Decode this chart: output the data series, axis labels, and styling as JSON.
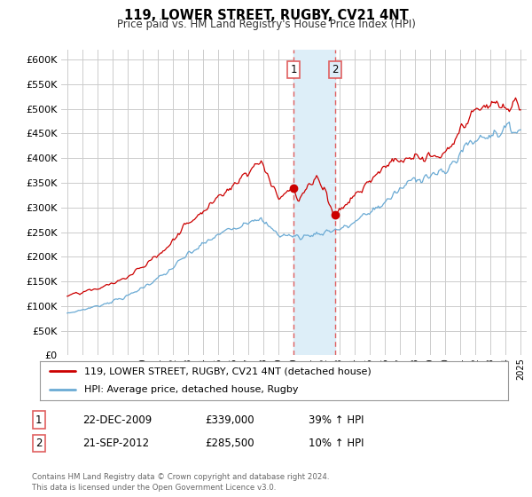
{
  "title": "119, LOWER STREET, RUGBY, CV21 4NT",
  "subtitle": "Price paid vs. HM Land Registry's House Price Index (HPI)",
  "legend_line1": "119, LOWER STREET, RUGBY, CV21 4NT (detached house)",
  "legend_line2": "HPI: Average price, detached house, Rugby",
  "transaction1_date": "22-DEC-2009",
  "transaction1_price": "£339,000",
  "transaction1_hpi": "39% ↑ HPI",
  "transaction2_date": "21-SEP-2012",
  "transaction2_price": "£285,500",
  "transaction2_hpi": "10% ↑ HPI",
  "transaction1_x": 2009.97,
  "transaction1_y": 339000,
  "transaction2_x": 2012.72,
  "transaction2_y": 285500,
  "vline1_x": 2009.97,
  "vline2_x": 2012.72,
  "hpi_color": "#6aaad4",
  "price_color": "#cc0000",
  "vline_color": "#e06060",
  "vspan_color": "#ddeef8",
  "background_color": "#ffffff",
  "grid_color": "#cccccc",
  "footer": "Contains HM Land Registry data © Crown copyright and database right 2024.\nThis data is licensed under the Open Government Licence v3.0.",
  "ylim": [
    0,
    620000
  ],
  "xlim_start": 1994.6,
  "xlim_end": 2025.4,
  "yticks": [
    0,
    50000,
    100000,
    150000,
    200000,
    250000,
    300000,
    350000,
    400000,
    450000,
    500000,
    550000,
    600000
  ],
  "xticks": [
    1995,
    1996,
    1997,
    1998,
    1999,
    2000,
    2001,
    2002,
    2003,
    2004,
    2005,
    2006,
    2007,
    2008,
    2009,
    2010,
    2011,
    2012,
    2013,
    2014,
    2015,
    2016,
    2017,
    2018,
    2019,
    2020,
    2021,
    2022,
    2023,
    2024,
    2025
  ]
}
